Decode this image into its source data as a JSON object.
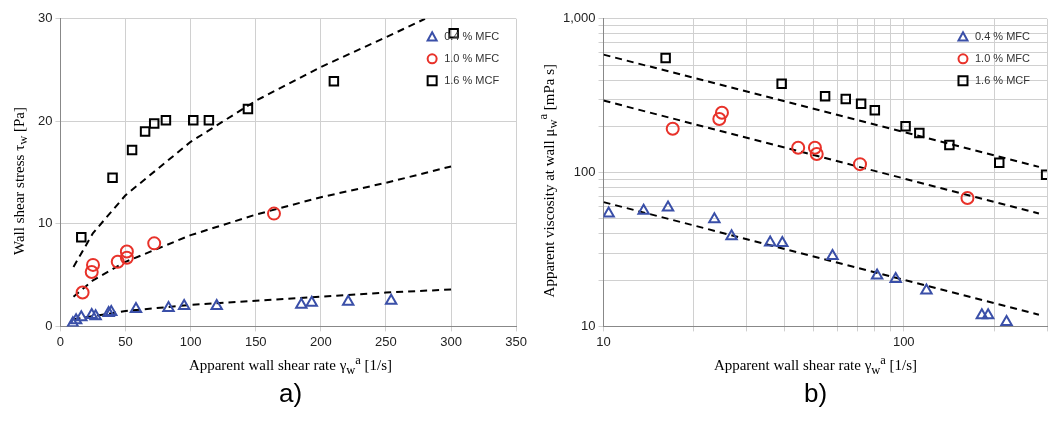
{
  "chart_data": [
    {
      "type": "scatter",
      "xlabel": "Apparent wall shear rate γ$_{w}$$^{a}$ [1/s]",
      "ylabel": "Wall shear stress τ$_{w}$ [Pa]",
      "annotations": [
        "a)"
      ],
      "xlim": [
        0,
        350
      ],
      "ylim": [
        0,
        30
      ],
      "xticks": [
        0,
        50,
        100,
        150,
        200,
        250,
        300,
        350
      ],
      "yticks": [
        0,
        10,
        20,
        30
      ],
      "grid": true,
      "legend": "top right",
      "series": [
        {
          "name": "0.4 % MFC",
          "color": "#3a4fa8",
          "marker": "triangle",
          "x": [
            9.5,
            12,
            16,
            24,
            27,
            37,
            39,
            58,
            83,
            95,
            120,
            185,
            193,
            221,
            254
          ],
          "values": [
            0.3,
            0.6,
            0.9,
            1.1,
            1.0,
            1.3,
            1.4,
            1.7,
            1.8,
            2.0,
            2.0,
            2.1,
            2.3,
            2.4,
            2.5
          ]
        },
        {
          "name": "1.0 % MFC",
          "color": "#e8322a",
          "marker": "circle",
          "x": [
            17,
            24,
            25,
            44,
            51,
            51,
            72,
            164
          ],
          "values": [
            3.3,
            5.3,
            6.0,
            6.3,
            6.7,
            7.3,
            8.1,
            11.0
          ]
        },
        {
          "name": "1.6 % MCF",
          "color": "#000000",
          "marker": "square",
          "x": [
            16,
            40,
            55,
            65,
            72,
            81,
            102,
            114,
            144,
            210,
            302
          ],
          "values": [
            8.7,
            14.5,
            17.2,
            19.0,
            19.8,
            20.1,
            20.1,
            20.1,
            21.2,
            23.9,
            28.6
          ]
        },
        {
          "type": "line",
          "color": "#000000",
          "marker": "none",
          "line_style": "dashed",
          "x": [
            10,
            25,
            50,
            100,
            150,
            200,
            250,
            300
          ],
          "values": [
            0.7,
            1.0,
            1.5,
            2.1,
            2.5,
            2.9,
            3.3,
            3.6
          ]
        },
        {
          "type": "line",
          "color": "#000000",
          "marker": "none",
          "line_style": "dashed",
          "x": [
            10,
            25,
            50,
            100,
            150,
            200,
            250,
            300
          ],
          "values": [
            2.9,
            4.5,
            6.3,
            8.9,
            10.9,
            12.6,
            14.0,
            15.6
          ]
        },
        {
          "type": "line",
          "color": "#000000",
          "marker": "none",
          "line_style": "dashed",
          "x": [
            10,
            25,
            50,
            100,
            150,
            200,
            250,
            280
          ],
          "values": [
            5.8,
            9.1,
            12.8,
            18.0,
            22.0,
            25.3,
            28.2,
            30
          ]
        }
      ]
    },
    {
      "type": "scatter",
      "xlabel": "Apparent wall shear rate γ$_{w}$$^{a}$ [1/s]",
      "ylabel": "Apparent viscosity at wall μ$_{w}$$^{a}$ [mPa s]",
      "annotations": [
        "b)"
      ],
      "log": "xy",
      "xlim": [
        10,
        300
      ],
      "ylim": [
        10,
        1000
      ],
      "xticks": [
        10,
        {
          "value": 20,
          "label": null
        },
        {
          "value": 30,
          "label": null
        },
        {
          "value": 40,
          "label": null
        },
        {
          "value": 50,
          "label": null
        },
        {
          "value": 60,
          "label": null
        },
        {
          "value": 70,
          "label": null
        },
        {
          "value": 80,
          "label": null
        },
        {
          "value": 90,
          "label": null
        },
        100,
        {
          "value": 200,
          "label": null
        },
        {
          "value": 300,
          "label": null
        }
      ],
      "yticks": [
        10,
        {
          "value": 20,
          "label": null
        },
        {
          "value": 30,
          "label": null
        },
        {
          "value": 40,
          "label": null
        },
        {
          "value": 50,
          "label": null
        },
        {
          "value": 60,
          "label": null
        },
        {
          "value": 70,
          "label": null
        },
        {
          "value": 80,
          "label": null
        },
        {
          "value": 90,
          "label": null
        },
        100,
        {
          "value": 200,
          "label": null
        },
        {
          "value": 300,
          "label": null
        },
        {
          "value": 400,
          "label": null
        },
        {
          "value": 500,
          "label": null
        },
        {
          "value": 600,
          "label": null
        },
        {
          "value": 700,
          "label": null
        },
        {
          "value": 800,
          "label": null
        },
        {
          "value": 900,
          "label": null
        },
        {
          "value": 1000,
          "label": "1,000"
        }
      ],
      "grid": true,
      "legend": "top right",
      "series": [
        {
          "name": "0.4 % MFC",
          "color": "#3a4fa8",
          "marker": "triangle",
          "x": [
            10.4,
            13.6,
            16.4,
            23.4,
            26.7,
            35.9,
            39.4,
            57.9,
            81.5,
            94,
            119,
            182,
            191,
            220
          ],
          "values": [
            54.2,
            56.4,
            59.2,
            49.7,
            38.5,
            35.1,
            34.8,
            28.7,
            21.4,
            20.3,
            17.1,
            11.8,
            11.8,
            10.7
          ]
        },
        {
          "name": "1.0 % MFC",
          "color": "#e8322a",
          "marker": "circle",
          "x": [
            17.0,
            24.3,
            24.8,
            44.5,
            50.6,
            51.3,
            71.5,
            163
          ],
          "values": [
            193,
            223,
            245,
            145,
            145,
            132,
            113.5,
            68.4
          ]
        },
        {
          "name": "1.6 % MCF",
          "color": "#000000",
          "marker": "square",
          "x": [
            16.1,
            39.2,
            54.7,
            64.1,
            72.1,
            80.1,
            101.4,
            112.7,
            141.9,
            208,
            298
          ],
          "values": [
            556,
            378,
            314,
            301,
            280,
            254,
            200,
            181,
            151,
            116,
            96.8
          ]
        },
        {
          "type": "line",
          "color": "#000000",
          "marker": "none",
          "line_style": "dashed",
          "x": [
            10,
            282
          ],
          "values": [
            64.3,
            11.9
          ]
        },
        {
          "type": "line",
          "color": "#000000",
          "marker": "none",
          "line_style": "dashed",
          "x": [
            10,
            282
          ],
          "values": [
            294,
            54.2
          ]
        },
        {
          "type": "line",
          "color": "#000000",
          "marker": "none",
          "line_style": "dashed",
          "x": [
            10,
            282
          ],
          "values": [
            585,
            109
          ]
        }
      ]
    }
  ]
}
